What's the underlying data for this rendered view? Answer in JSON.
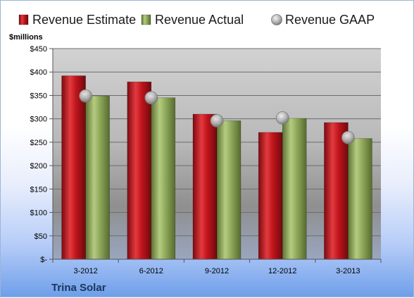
{
  "chart_data": {
    "type": "bar",
    "title": "",
    "xlabel": "",
    "ylabel": "",
    "unit_label": "$millions",
    "footer_label": "Trina Solar",
    "categories": [
      "3-2012",
      "6-2012",
      "9-2012",
      "12-2012",
      "3-2013"
    ],
    "series": [
      {
        "name": "Revenue Estimate",
        "kind": "bar",
        "color": "#c0141c",
        "values": [
          392,
          379,
          310,
          271,
          292
        ]
      },
      {
        "name": "Revenue Actual",
        "kind": "bar",
        "color": "#8ea85a",
        "values": [
          349,
          345,
          296,
          301,
          258
        ]
      },
      {
        "name": "Revenue GAAP",
        "kind": "marker",
        "color": "#b9b9b9",
        "values": [
          349,
          345,
          296,
          302,
          260
        ]
      }
    ],
    "ylim": [
      0,
      450
    ],
    "yticks": [
      0,
      50,
      100,
      150,
      200,
      250,
      300,
      350,
      400,
      450
    ],
    "ytick_labels": [
      "$-",
      "$50",
      "$100",
      "$150",
      "$200",
      "$250",
      "$300",
      "$350",
      "$400",
      "$450"
    ],
    "grid": true,
    "legend_position": "top"
  }
}
